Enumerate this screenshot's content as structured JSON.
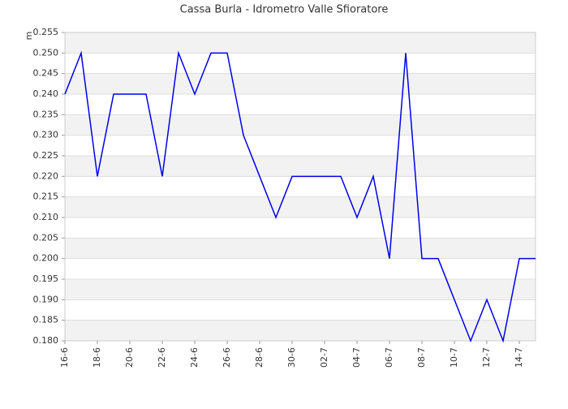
{
  "chart_data": {
    "type": "line",
    "title": "Cassa Burla - Idrometro Valle Sfioratore",
    "y_label": "m",
    "categories": [
      "16-6",
      null,
      "18-6",
      null,
      "20-6",
      null,
      "22-6",
      null,
      "24-6",
      null,
      "26-6",
      null,
      "28-6",
      null,
      "30-6",
      null,
      "02-7",
      null,
      "04-7",
      null,
      "06-7",
      null,
      "08-7",
      null,
      "10-7",
      null,
      "12-7",
      null,
      "14-7",
      null
    ],
    "series": [
      {
        "name": "Idrometro",
        "color": "#0000ee",
        "values": [
          0.24,
          0.25,
          0.22,
          0.24,
          0.24,
          0.24,
          0.22,
          0.25,
          0.24,
          0.25,
          0.25,
          0.23,
          0.22,
          0.21,
          0.22,
          0.22,
          0.22,
          0.22,
          0.21,
          0.22,
          0.2,
          0.25,
          0.2,
          0.2,
          0.19,
          0.18,
          0.19,
          0.18,
          0.2,
          0.2
        ]
      }
    ],
    "ylim": [
      0.18,
      0.255
    ],
    "yticks": [
      {
        "value": 0.18,
        "label": "0.180"
      },
      {
        "value": 0.185,
        "label": "0.185"
      },
      {
        "value": 0.19,
        "label": "0.190"
      },
      {
        "value": 0.195,
        "label": "0.195"
      },
      {
        "value": 0.2,
        "label": "0.200"
      },
      {
        "value": 0.205,
        "label": "0.205"
      },
      {
        "value": 0.21,
        "label": "0.210"
      },
      {
        "value": 0.215,
        "label": "0.215"
      },
      {
        "value": 0.22,
        "label": "0.220"
      },
      {
        "value": 0.225,
        "label": "0.225"
      },
      {
        "value": 0.23,
        "label": "0.230"
      },
      {
        "value": 0.235,
        "label": "0.235"
      },
      {
        "value": 0.24,
        "label": "0.240"
      },
      {
        "value": 0.245,
        "label": "0.245"
      },
      {
        "value": 0.25,
        "label": "0.250"
      },
      {
        "value": 0.255,
        "label": "0.255"
      }
    ],
    "grid": true
  }
}
